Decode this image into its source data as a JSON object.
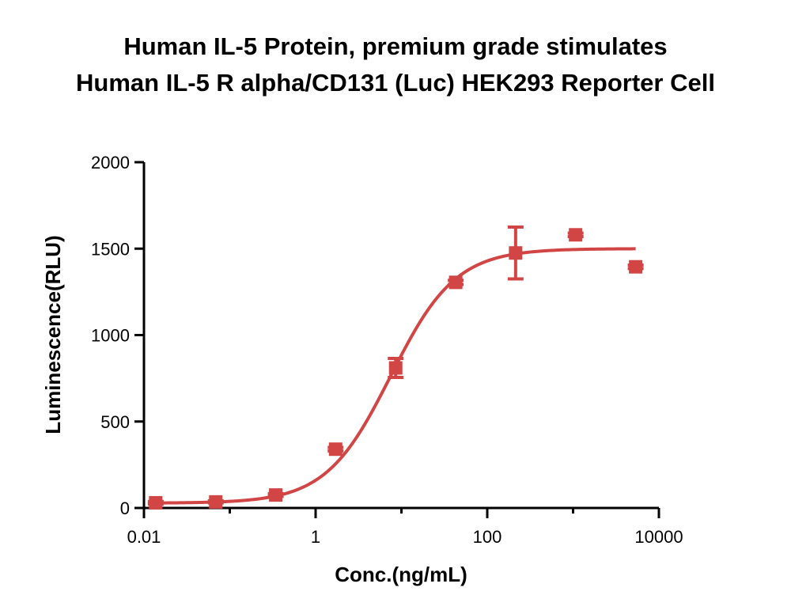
{
  "chart_data": {
    "type": "scatter",
    "title": [
      "Human IL-5 Protein, premium grade stimulates",
      "Human IL-5 R alpha/CD131 (Luc) HEK293 Reporter Cell"
    ],
    "xlabel": "Conc.(ng/mL)",
    "ylabel": "Luminescence(RLU)",
    "x_scale": "log",
    "xlim": [
      0.01,
      10000
    ],
    "ylim": [
      0,
      2000
    ],
    "x_ticks": [
      0.01,
      1,
      100,
      10000
    ],
    "x_tick_labels": [
      "0.01",
      "1",
      "100",
      "10000"
    ],
    "y_ticks": [
      0,
      500,
      1000,
      1500,
      2000
    ],
    "y_tick_labels": [
      "0",
      "500",
      "1000",
      "1500",
      "2000"
    ],
    "color": "#d24545",
    "points": [
      {
        "x": 0.0137,
        "y": 30,
        "err": 8
      },
      {
        "x": 0.0686,
        "y": 35,
        "err": 6
      },
      {
        "x": 0.343,
        "y": 75,
        "err": 8
      },
      {
        "x": 1.71,
        "y": 340,
        "err": 10
      },
      {
        "x": 8.57,
        "y": 810,
        "err": 55
      },
      {
        "x": 42.9,
        "y": 1305,
        "err": 12
      },
      {
        "x": 214,
        "y": 1475,
        "err": 150
      },
      {
        "x": 1070,
        "y": 1580,
        "err": 10
      },
      {
        "x": 5360,
        "y": 1395,
        "err": 10
      }
    ],
    "fit": {
      "model": "4PL",
      "bottom": 28,
      "top": 1500,
      "ec50": 7.5,
      "hill": 1.15,
      "x_range": [
        0.0137,
        5360
      ]
    },
    "grid": false,
    "legend": "none"
  }
}
